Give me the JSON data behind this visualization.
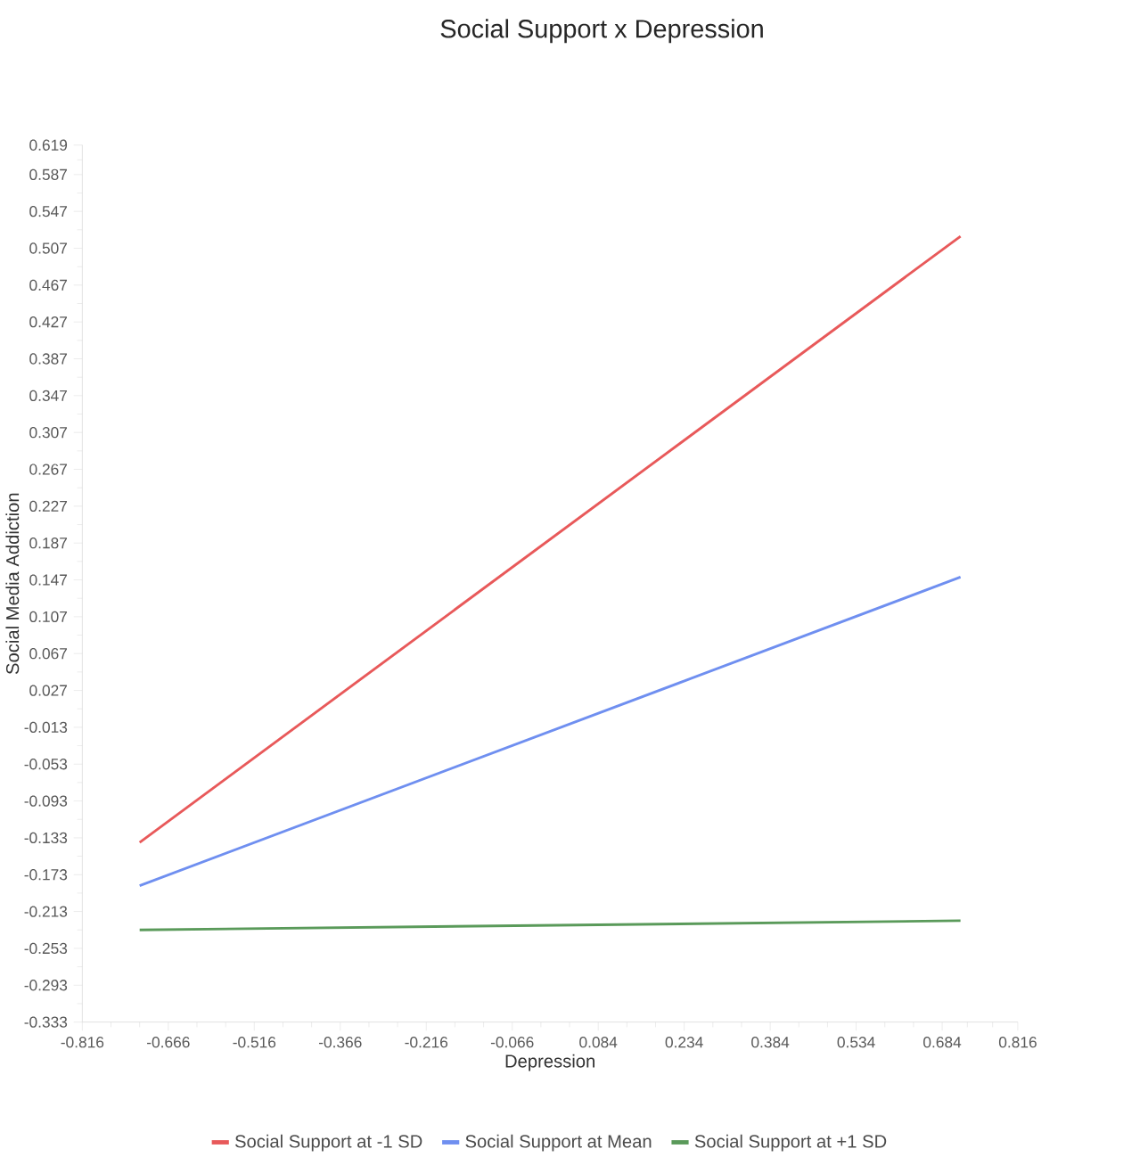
{
  "chart_data": {
    "type": "line",
    "title": "Social Support x Depression",
    "xlabel": "Depression",
    "ylabel": "Social Media Addiction",
    "x": [
      -0.716,
      0.716
    ],
    "series": [
      {
        "name": "Social Support at -1 SD",
        "color": "#e8595a",
        "values": [
          -0.138,
          0.52
        ]
      },
      {
        "name": "Social Support at Mean",
        "color": "#6f8ff0",
        "values": [
          -0.185,
          0.15
        ]
      },
      {
        "name": "Social Support at +1 SD",
        "color": "#5a9a5a",
        "values": [
          -0.233,
          -0.223
        ]
      }
    ],
    "xlim": [
      -0.816,
      0.816
    ],
    "ylim": [
      -0.333,
      0.619
    ],
    "xticks": [
      -0.816,
      -0.666,
      -0.516,
      -0.366,
      -0.216,
      -0.066,
      0.084,
      0.234,
      0.384,
      0.534,
      0.684,
      0.816
    ],
    "yticks": [
      -0.333,
      -0.293,
      -0.253,
      -0.213,
      -0.173,
      -0.133,
      -0.093,
      -0.053,
      -0.013,
      0.027,
      0.067,
      0.107,
      0.147,
      0.187,
      0.227,
      0.267,
      0.307,
      0.347,
      0.387,
      0.427,
      0.467,
      0.507,
      0.547,
      0.587,
      0.619
    ],
    "legend": "bottom"
  }
}
